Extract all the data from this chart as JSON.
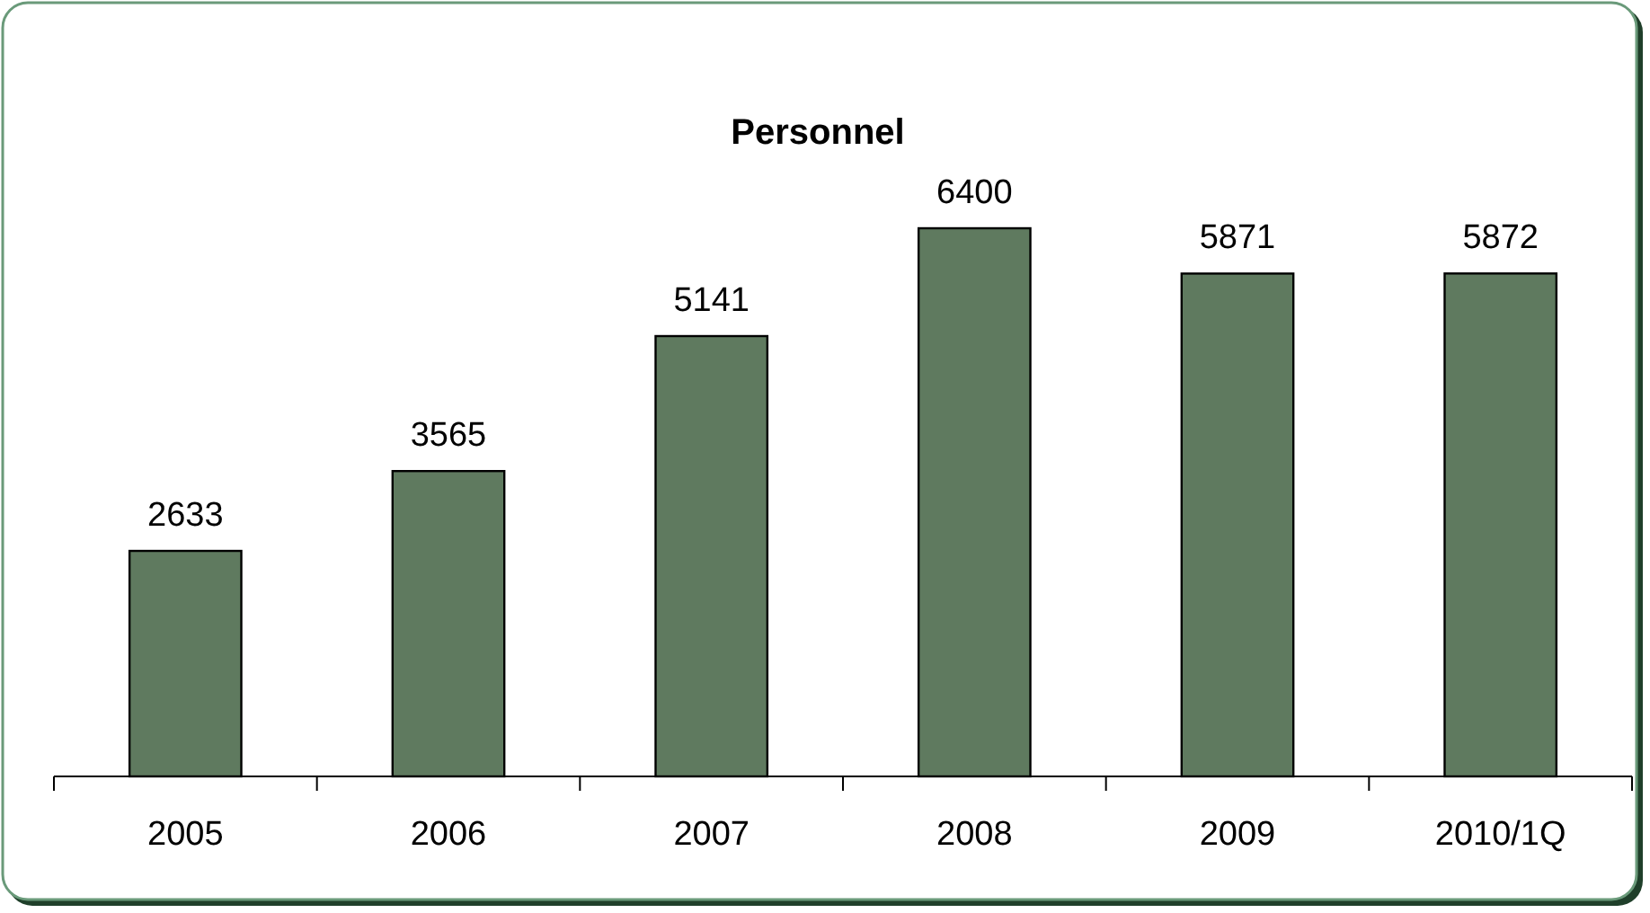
{
  "chart_data": {
    "type": "bar",
    "title": "Personnel",
    "categories": [
      "2005",
      "2006",
      "2007",
      "2008",
      "2009",
      "2010/1Q"
    ],
    "values": [
      2633,
      3565,
      5141,
      6400,
      5871,
      5872
    ],
    "color": "#5f7a5f",
    "data_labels": true
  }
}
